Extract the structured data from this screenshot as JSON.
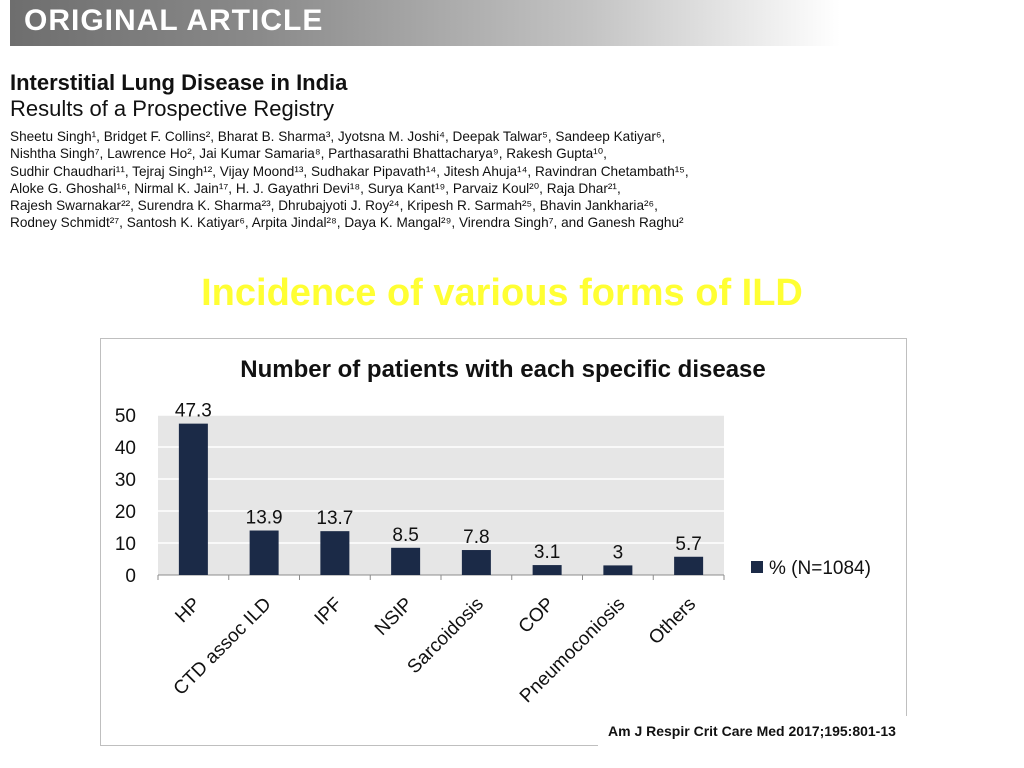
{
  "banner": {
    "label": "ORIGINAL ARTICLE"
  },
  "paper": {
    "title": "Interstitial Lung Disease in India",
    "subtitle": "Results of a Prospective Registry",
    "author_lines": [
      "Sheetu Singh¹, Bridget F. Collins², Bharat B. Sharma³, Jyotsna M. Joshi⁴, Deepak Talwar⁵, Sandeep Katiyar⁶,",
      "Nishtha Singh⁷, Lawrence Ho², Jai Kumar Samaria⁸, Parthasarathi Bhattacharya⁹, Rakesh Gupta¹⁰,",
      "Sudhir Chaudhari¹¹, Tejraj Singh¹², Vijay Moond¹³, Sudhakar Pipavath¹⁴, Jitesh Ahuja¹⁴, Ravindran Chetambath¹⁵,",
      "Aloke G. Ghoshal¹⁶, Nirmal K. Jain¹⁷, H. J. Gayathri Devi¹⁸, Surya Kant¹⁹, Parvaiz Koul²⁰, Raja Dhar²¹,",
      "Rajesh Swarnakar²², Surendra K. Sharma²³, Dhrubajyoti J. Roy²⁴, Kripesh R. Sarmah²⁵, Bhavin Jankharia²⁶,",
      "Rodney Schmidt²⁷, Santosh K. Katiyar⁶, Arpita Jindal²⁸, Daya K. Mangal²⁹, Virendra Singh⁷, and Ganesh Raghu²"
    ]
  },
  "slide": {
    "heading": "Incidence of various forms of ILD"
  },
  "chart_data": {
    "type": "bar",
    "title": "Number of patients with each specific disease",
    "categories": [
      "HP",
      "CTD assoc ILD",
      "IPF",
      "NSIP",
      "Sarcoidosis",
      "COP",
      "Pneumoconiosis",
      "Others"
    ],
    "series": [
      {
        "name": "% (N=1084)",
        "values": [
          47.3,
          13.9,
          13.7,
          8.5,
          7.8,
          3.1,
          3,
          5.7
        ]
      }
    ],
    "data_labels": [
      "47.3",
      "13.9",
      "13.7",
      "8.5",
      "7.8",
      "3.1",
      "3",
      "5.7"
    ],
    "y_ticks": [
      0,
      10,
      20,
      30,
      40,
      50
    ],
    "ylim": [
      0,
      50
    ],
    "xlabel": "",
    "ylabel": "",
    "grid": true,
    "legend_position": "right",
    "colors": {
      "bar": "#1b2a47",
      "plot_background": "#e6e6e6",
      "gridline": "#ffffff"
    }
  },
  "citation": "Am J Respir Crit Care Med 2017;195:801-13"
}
